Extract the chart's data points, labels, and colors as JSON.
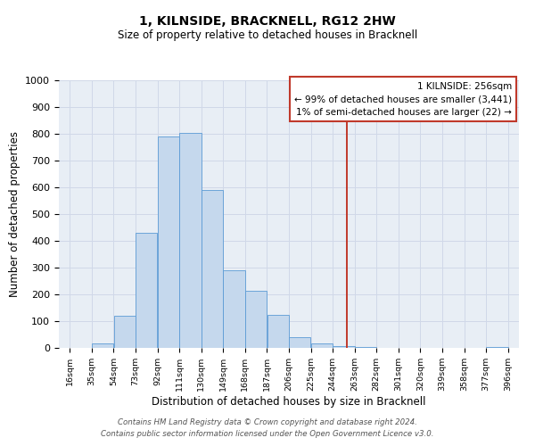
{
  "title1": "1, KILNSIDE, BRACKNELL, RG12 2HW",
  "title2": "Size of property relative to detached houses in Bracknell",
  "xlabel": "Distribution of detached houses by size in Bracknell",
  "ylabel": "Number of detached properties",
  "bin_edges": [
    16,
    35,
    54,
    73,
    92,
    111,
    130,
    149,
    168,
    187,
    206,
    225,
    244,
    263,
    282,
    301,
    320,
    339,
    358,
    377,
    396
  ],
  "bar_heights": [
    0,
    18,
    120,
    430,
    790,
    805,
    590,
    290,
    213,
    125,
    40,
    18,
    8,
    2,
    1,
    1,
    0,
    0,
    0,
    5
  ],
  "bar_color": "#c5d8ed",
  "bar_edge_color": "#5b9bd5",
  "grid_color": "#d0d8e8",
  "bg_color": "#e8eef5",
  "vline_x": 256,
  "vline_color": "#c0392b",
  "annotation_title": "1 KILNSIDE: 256sqm",
  "annotation_line1": "← 99% of detached houses are smaller (3,441)",
  "annotation_line2": "1% of semi-detached houses are larger (22) →",
  "footer1": "Contains HM Land Registry data © Crown copyright and database right 2024.",
  "footer2": "Contains public sector information licensed under the Open Government Licence v3.0.",
  "ylim": [
    0,
    1000
  ],
  "yticks": [
    0,
    100,
    200,
    300,
    400,
    500,
    600,
    700,
    800,
    900,
    1000
  ],
  "tick_labels": [
    "16sqm",
    "35sqm",
    "54sqm",
    "73sqm",
    "92sqm",
    "111sqm",
    "130sqm",
    "149sqm",
    "168sqm",
    "187sqm",
    "206sqm",
    "225sqm",
    "244sqm",
    "263sqm",
    "282sqm",
    "301sqm",
    "320sqm",
    "339sqm",
    "358sqm",
    "377sqm",
    "396sqm"
  ]
}
